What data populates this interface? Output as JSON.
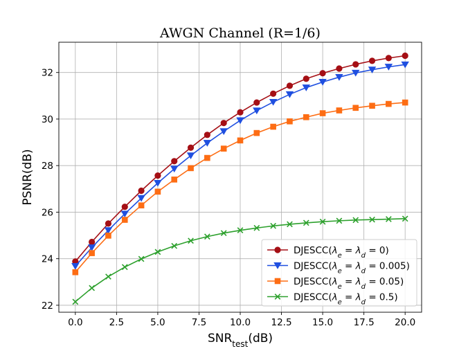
{
  "chart_data": {
    "type": "line",
    "title": "AWGN Channel (R=1/6)",
    "xlabel": {
      "main": "SNR",
      "sub": "test",
      "tail": "(dB)"
    },
    "ylabel": "PSNR(dB)",
    "xlim": [
      -1.0,
      21.0
    ],
    "ylim": [
      21.7,
      33.3
    ],
    "xticks": [
      0.0,
      2.5,
      5.0,
      7.5,
      10.0,
      12.5,
      15.0,
      17.5,
      20.0
    ],
    "xtick_labels": [
      "0.0",
      "2.5",
      "5.0",
      "7.5",
      "10.0",
      "12.5",
      "15.0",
      "17.5",
      "20.0"
    ],
    "yticks": [
      22,
      24,
      26,
      28,
      30,
      32
    ],
    "ytick_labels": [
      "22",
      "24",
      "26",
      "28",
      "30",
      "32"
    ],
    "grid": true,
    "legend_position": "lower-right",
    "x": [
      0,
      1,
      2,
      3,
      4,
      5,
      6,
      7,
      8,
      9,
      10,
      11,
      12,
      13,
      14,
      15,
      16,
      17,
      18,
      19,
      20
    ],
    "series": [
      {
        "name": "DJESCC(λe = λd = 0)",
        "legend_parts": {
          "prefix": "DJESCC(",
          "l1": "λ",
          "s1": "e",
          "mid": " = ",
          "l2": "λ",
          "s2": "d",
          "tail": " = 0)"
        },
        "color": "#a50f15",
        "marker": "circle",
        "values": [
          23.88,
          24.72,
          25.51,
          26.23,
          26.92,
          27.57,
          28.19,
          28.77,
          29.32,
          29.83,
          30.29,
          30.71,
          31.09,
          31.43,
          31.73,
          31.97,
          32.17,
          32.35,
          32.5,
          32.62,
          32.72
        ]
      },
      {
        "name": "DJESCC(λe = λd = 0.005)",
        "legend_parts": {
          "prefix": "DJESCC(",
          "l1": "λ",
          "s1": "e",
          "mid": " = ",
          "l2": "λ",
          "s2": "d",
          "tail": " = 0.005)"
        },
        "color": "#1f4fe0",
        "marker": "triangle-down",
        "values": [
          23.68,
          24.48,
          25.22,
          25.93,
          26.6,
          27.25,
          27.86,
          28.43,
          28.97,
          29.47,
          29.94,
          30.36,
          30.73,
          31.06,
          31.35,
          31.59,
          31.8,
          31.98,
          32.12,
          32.24,
          32.34
        ]
      },
      {
        "name": "DJESCC(λe = λd = 0.05)",
        "legend_parts": {
          "prefix": "DJESCC(",
          "l1": "λ",
          "s1": "e",
          "mid": " = ",
          "l2": "λ",
          "s2": "d",
          "tail": " = 0.05)"
        },
        "color": "#fd6d14",
        "marker": "square",
        "values": [
          23.42,
          24.24,
          24.99,
          25.67,
          26.29,
          26.88,
          27.4,
          27.89,
          28.33,
          28.73,
          29.08,
          29.4,
          29.67,
          29.9,
          30.08,
          30.25,
          30.37,
          30.48,
          30.57,
          30.65,
          30.71
        ]
      },
      {
        "name": "DJESCC(λe = λd = 0.5)",
        "legend_parts": {
          "prefix": "DJESCC(",
          "l1": "λ",
          "s1": "e",
          "mid": " = ",
          "l2": "λ",
          "s2": "d",
          "tail": " = 0.5)"
        },
        "color": "#2ca02c",
        "marker": "x",
        "values": [
          22.15,
          22.74,
          23.23,
          23.64,
          23.99,
          24.29,
          24.55,
          24.77,
          24.95,
          25.1,
          25.22,
          25.32,
          25.41,
          25.48,
          25.54,
          25.59,
          25.63,
          25.66,
          25.68,
          25.7,
          25.72
        ]
      }
    ]
  }
}
